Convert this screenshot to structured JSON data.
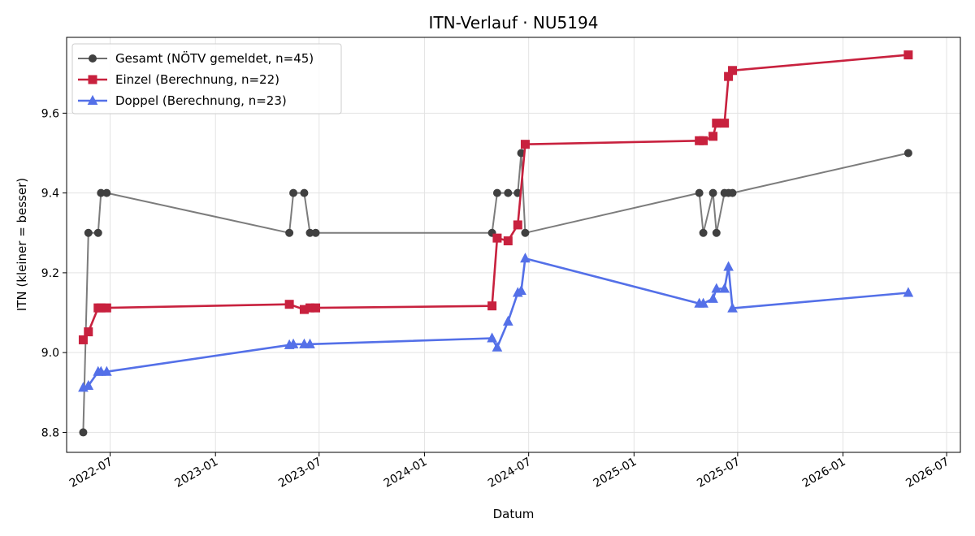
{
  "chart_data": {
    "type": "line",
    "title": "ITN-Verlauf · NU5194",
    "xlabel": "Datum",
    "ylabel": "ITN  (kleiner = besser)",
    "xlim": [
      "2022-04-16",
      "2026-07-25"
    ],
    "ylim": [
      8.75,
      9.79
    ],
    "x_ticks": [
      "2022-07",
      "2023-01",
      "2023-07",
      "2024-01",
      "2024-07",
      "2025-01",
      "2025-07",
      "2026-01",
      "2026-07"
    ],
    "y_ticks": [
      8.8,
      9.0,
      9.2,
      9.4,
      9.6
    ],
    "grid": true,
    "legend_position": "top-left",
    "series": [
      {
        "name": "Gesamt (NÖTV gemeldet, n=45)",
        "color": "#6e6e6e",
        "marker": "circle",
        "points": [
          [
            "2022-05-15",
            8.8
          ],
          [
            "2022-05-24",
            9.3
          ],
          [
            "2022-06-10",
            9.3
          ],
          [
            "2022-06-15",
            9.4
          ],
          [
            "2022-06-25",
            9.4
          ],
          [
            "2023-05-10",
            9.3
          ],
          [
            "2023-05-17",
            9.4
          ],
          [
            "2023-06-05",
            9.4
          ],
          [
            "2023-06-15",
            9.3
          ],
          [
            "2023-06-25",
            9.3
          ],
          [
            "2024-04-28",
            9.3
          ],
          [
            "2024-05-07",
            9.4
          ],
          [
            "2024-05-26",
            9.4
          ],
          [
            "2024-06-12",
            9.4
          ],
          [
            "2024-06-18",
            9.5
          ],
          [
            "2024-06-25",
            9.3
          ],
          [
            "2025-04-25",
            9.4
          ],
          [
            "2025-05-02",
            9.3
          ],
          [
            "2025-05-19",
            9.4
          ],
          [
            "2025-05-25",
            9.3
          ],
          [
            "2025-06-08",
            9.4
          ],
          [
            "2025-06-15",
            9.4
          ],
          [
            "2025-06-22",
            9.4
          ],
          [
            "2026-04-25",
            9.5
          ]
        ]
      },
      {
        "name": "Einzel (Berechnung, n=22)",
        "color": "#c8213e",
        "marker": "square",
        "points": [
          [
            "2022-05-15",
            9.032
          ],
          [
            "2022-05-24",
            9.052
          ],
          [
            "2022-06-10",
            9.112
          ],
          [
            "2022-06-15",
            9.112
          ],
          [
            "2022-06-25",
            9.112
          ],
          [
            "2023-05-10",
            9.121
          ],
          [
            "2023-06-05",
            9.108
          ],
          [
            "2023-06-15",
            9.112
          ],
          [
            "2023-06-25",
            9.112
          ],
          [
            "2024-04-28",
            9.117
          ],
          [
            "2024-05-07",
            9.287
          ],
          [
            "2024-05-26",
            9.28
          ],
          [
            "2024-06-12",
            9.32
          ],
          [
            "2024-06-25",
            9.522
          ],
          [
            "2025-04-25",
            9.531
          ],
          [
            "2025-05-02",
            9.531
          ],
          [
            "2025-05-19",
            9.542
          ],
          [
            "2025-05-25",
            9.575
          ],
          [
            "2025-06-08",
            9.575
          ],
          [
            "2025-06-15",
            9.692
          ],
          [
            "2025-06-22",
            9.707
          ],
          [
            "2026-04-25",
            9.746
          ]
        ]
      },
      {
        "name": "Doppel (Berechnung, n=23)",
        "color": "#5470e8",
        "marker": "triangle",
        "points": [
          [
            "2022-05-15",
            8.912
          ],
          [
            "2022-05-24",
            8.917
          ],
          [
            "2022-06-10",
            8.952
          ],
          [
            "2022-06-15",
            8.952
          ],
          [
            "2022-06-25",
            8.952
          ],
          [
            "2023-05-10",
            9.019
          ],
          [
            "2023-05-17",
            9.021
          ],
          [
            "2023-06-05",
            9.021
          ],
          [
            "2023-06-15",
            9.021
          ],
          [
            "2024-04-28",
            9.036
          ],
          [
            "2024-05-07",
            9.013
          ],
          [
            "2024-05-26",
            9.078
          ],
          [
            "2024-06-12",
            9.15
          ],
          [
            "2024-06-18",
            9.155
          ],
          [
            "2024-06-25",
            9.236
          ],
          [
            "2025-04-25",
            9.123
          ],
          [
            "2025-05-02",
            9.123
          ],
          [
            "2025-05-19",
            9.135
          ],
          [
            "2025-05-25",
            9.16
          ],
          [
            "2025-06-08",
            9.16
          ],
          [
            "2025-06-15",
            9.215
          ],
          [
            "2025-06-22",
            9.111
          ],
          [
            "2026-04-25",
            9.15
          ]
        ]
      }
    ]
  }
}
